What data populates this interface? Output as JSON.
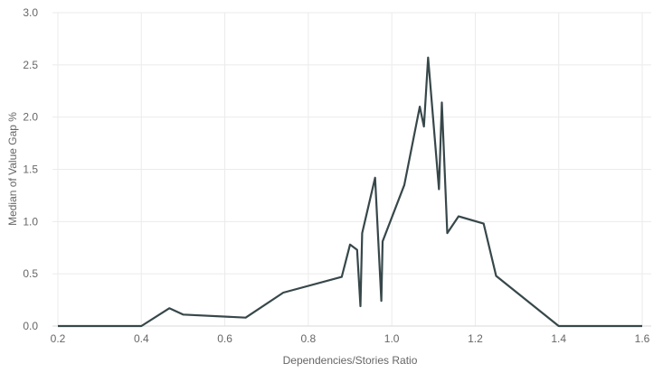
{
  "chart_data": {
    "type": "line",
    "xlabel": "Dependencies/Stories Ratio",
    "ylabel": "Median of Value Gap %",
    "xlim": [
      0.2,
      1.6
    ],
    "ylim": [
      0.0,
      3.0
    ],
    "x_ticks": [
      "0.2",
      "0.4",
      "0.6",
      "0.8",
      "1.0",
      "1.2",
      "1.4",
      "1.6"
    ],
    "y_ticks": [
      "0.0",
      "0.5",
      "1.0",
      "1.5",
      "2.0",
      "2.5",
      "3.0"
    ],
    "grid": true,
    "series": [
      {
        "color": "#37474a",
        "points": [
          [
            0.2,
            0.0
          ],
          [
            0.4,
            0.0
          ],
          [
            0.467,
            0.17
          ],
          [
            0.5,
            0.11
          ],
          [
            0.65,
            0.08
          ],
          [
            0.74,
            0.32
          ],
          [
            0.88,
            0.47
          ],
          [
            0.9,
            0.78
          ],
          [
            0.917,
            0.73
          ],
          [
            0.925,
            0.19
          ],
          [
            0.929,
            0.89
          ],
          [
            0.96,
            1.42
          ],
          [
            0.975,
            0.24
          ],
          [
            0.978,
            0.81
          ],
          [
            1.03,
            1.35
          ],
          [
            1.067,
            2.1
          ],
          [
            1.077,
            1.91
          ],
          [
            1.087,
            2.57
          ],
          [
            1.113,
            1.31
          ],
          [
            1.12,
            2.14
          ],
          [
            1.133,
            0.89
          ],
          [
            1.16,
            1.05
          ],
          [
            1.22,
            0.98
          ],
          [
            1.25,
            0.48
          ],
          [
            1.4,
            0.0
          ],
          [
            1.6,
            0.0
          ]
        ]
      }
    ]
  }
}
